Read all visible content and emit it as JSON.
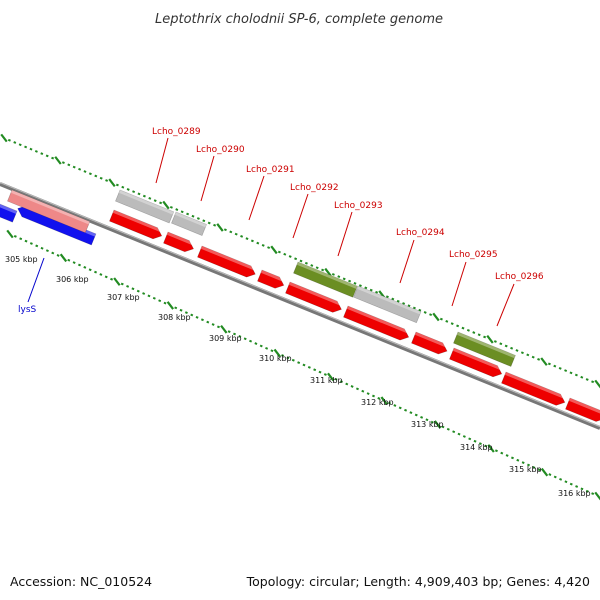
{
  "title": "Leptothrix cholodnii SP-6, complete genome",
  "accession": "Accession: NC_010524",
  "topology": "Topology: circular; Length: 4,909,403 bp; Genes: 4,420",
  "colors": {
    "forward_gene": "#ee0000",
    "reverse_gene": "#1111ee",
    "reverse_rna": "#ee8888",
    "hypothetical": "#bbbbbb",
    "olive": "#6b8e23",
    "backbone": "#888888",
    "tick": "#228b22",
    "label_red": "#cc0000",
    "label_blue": "#0000cc"
  },
  "kbp_labels": [
    "305 kbp",
    "306 kbp",
    "307 kbp",
    "308 kbp",
    "309 kbp",
    "310 kbp",
    "311 kbp",
    "312 kbp",
    "313 kbp",
    "314 kbp",
    "315 kbp",
    "316 kbp"
  ],
  "gene_labels": [
    {
      "text": "lysS",
      "color": "blue"
    },
    {
      "text": "Lcho_0289",
      "color": "red"
    },
    {
      "text": "Lcho_0290",
      "color": "red"
    },
    {
      "text": "Lcho_0291",
      "color": "red"
    },
    {
      "text": "Lcho_0292",
      "color": "red"
    },
    {
      "text": "Lcho_0293",
      "color": "red"
    },
    {
      "text": "Lcho_0294",
      "color": "red"
    },
    {
      "text": "Lcho_0295",
      "color": "red"
    },
    {
      "text": "Lcho_0296",
      "color": "red"
    }
  ]
}
